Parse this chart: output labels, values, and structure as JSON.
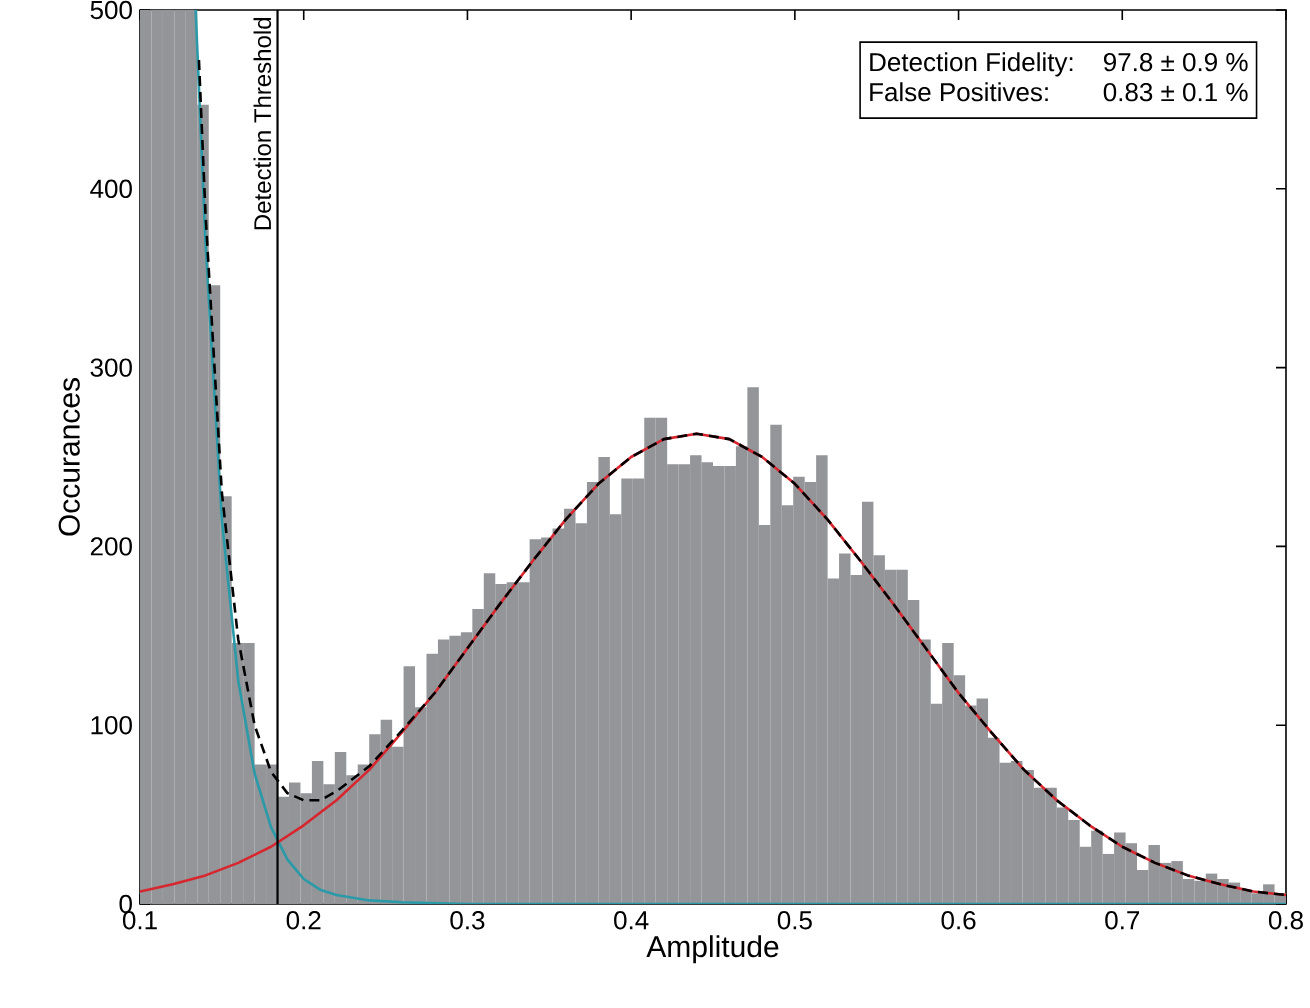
{
  "chart_data": {
    "type": "histogram",
    "xlabel": "Amplitude",
    "ylabel": "Occurances",
    "color": "#939598",
    "bins": [
      0.1,
      0.107,
      0.114,
      0.121,
      0.128,
      0.135,
      0.142,
      0.149,
      0.156,
      0.163,
      0.17,
      0.177,
      0.184,
      0.191,
      0.198,
      0.205,
      0.212,
      0.219,
      0.226,
      0.233,
      0.24,
      0.247,
      0.254,
      0.261,
      0.268,
      0.275,
      0.282,
      0.289,
      0.296,
      0.303,
      0.31,
      0.317,
      0.324,
      0.331,
      0.338,
      0.345,
      0.352,
      0.359,
      0.366,
      0.373,
      0.38,
      0.387,
      0.394,
      0.401,
      0.408,
      0.415,
      0.422,
      0.429,
      0.436,
      0.443,
      0.45,
      0.457,
      0.464,
      0.471,
      0.478,
      0.485,
      0.492,
      0.499,
      0.506,
      0.513,
      0.52,
      0.527,
      0.534,
      0.541,
      0.548,
      0.555,
      0.562,
      0.569,
      0.576,
      0.583,
      0.59,
      0.597,
      0.604,
      0.611,
      0.618,
      0.625,
      0.632,
      0.639,
      0.646,
      0.653,
      0.66,
      0.667,
      0.674,
      0.681,
      0.688,
      0.695,
      0.702,
      0.709,
      0.716,
      0.723,
      0.73,
      0.737,
      0.744,
      0.751,
      0.758,
      0.765,
      0.772,
      0.779,
      0.786,
      0.793,
      0.8
    ],
    "values": [
      500,
      500,
      500,
      500,
      500,
      447,
      346,
      228,
      146,
      146,
      78,
      78,
      60,
      68,
      62,
      80,
      67,
      85,
      72,
      78,
      95,
      103,
      88,
      133,
      110,
      140,
      148,
      150,
      152,
      165,
      185,
      179,
      180,
      180,
      204,
      205,
      210,
      221,
      213,
      236,
      250,
      218,
      238,
      238,
      272,
      272,
      246,
      246,
      251,
      247,
      245,
      245,
      256,
      289,
      212,
      268,
      223,
      239,
      236,
      251,
      182,
      196,
      184,
      225,
      195,
      187,
      187,
      170,
      148,
      112,
      146,
      128,
      111,
      115,
      93,
      79,
      80,
      75,
      65,
      65,
      54,
      47,
      32,
      41,
      28,
      40,
      34,
      19,
      33,
      23,
      24,
      14,
      13,
      17,
      14,
      12,
      8,
      6,
      11,
      6
    ],
    "series": [
      {
        "type": "line",
        "color": "#2a9aa8",
        "line_style": "solid",
        "x": [
          0.134,
          0.14,
          0.15,
          0.16,
          0.17,
          0.18,
          0.19,
          0.2,
          0.21,
          0.22,
          0.24,
          0.26,
          0.3,
          0.8
        ],
        "values": [
          500,
          370,
          215,
          125,
          73,
          43,
          25,
          14,
          8,
          5,
          2,
          1,
          0,
          0
        ]
      },
      {
        "type": "line",
        "color": "#d7262e",
        "line_style": "solid",
        "x": [
          0.1,
          0.12,
          0.14,
          0.16,
          0.18,
          0.2,
          0.22,
          0.24,
          0.26,
          0.28,
          0.3,
          0.32,
          0.34,
          0.36,
          0.38,
          0.4,
          0.42,
          0.44,
          0.46,
          0.48,
          0.5,
          0.52,
          0.54,
          0.56,
          0.58,
          0.6,
          0.62,
          0.64,
          0.66,
          0.68,
          0.7,
          0.72,
          0.74,
          0.76,
          0.78,
          0.8
        ],
        "values": [
          7,
          11,
          16,
          23,
          32,
          44,
          58,
          75,
          96,
          118,
          143,
          168,
          192,
          215,
          235,
          250,
          260,
          263,
          260,
          250,
          235,
          215,
          192,
          168,
          143,
          118,
          96,
          75,
          58,
          44,
          32,
          23,
          16,
          11,
          7,
          5
        ]
      },
      {
        "type": "line",
        "color": "#000000",
        "line_style": "dashed",
        "x": [
          0.136,
          0.14,
          0.15,
          0.16,
          0.17,
          0.18,
          0.19,
          0.2,
          0.21,
          0.22,
          0.24,
          0.26,
          0.28,
          0.3,
          0.32,
          0.34,
          0.36,
          0.38,
          0.4,
          0.42,
          0.44,
          0.46,
          0.48,
          0.5,
          0.52,
          0.54,
          0.56,
          0.58,
          0.6,
          0.62,
          0.64,
          0.66,
          0.68,
          0.7,
          0.72,
          0.74,
          0.76,
          0.78,
          0.8
        ],
        "values": [
          472,
          386,
          230,
          148,
          100,
          74,
          62,
          58,
          58,
          63,
          77,
          97,
          118,
          143,
          168,
          192,
          215,
          235,
          250,
          260,
          263,
          260,
          250,
          235,
          215,
          192,
          168,
          143,
          118,
          96,
          75,
          58,
          44,
          32,
          23,
          16,
          11,
          7,
          5
        ]
      }
    ],
    "ref_lines": [
      {
        "axis": "x",
        "value": 0.184,
        "label": "Detection Threshold",
        "color": "#000000"
      }
    ],
    "annotations": [
      "Detection Fidelity:",
      "97.8 ± 0.9 %",
      "False Positives:",
      "0.83 ± 0.1 %"
    ],
    "xlim": [
      0.1,
      0.8
    ],
    "ylim": [
      0,
      500
    ],
    "xticks": [
      0.1,
      0.2,
      0.3,
      0.4,
      0.5,
      0.6,
      0.7,
      0.8
    ],
    "yticks": [
      0,
      100,
      200,
      300,
      400,
      500
    ]
  }
}
